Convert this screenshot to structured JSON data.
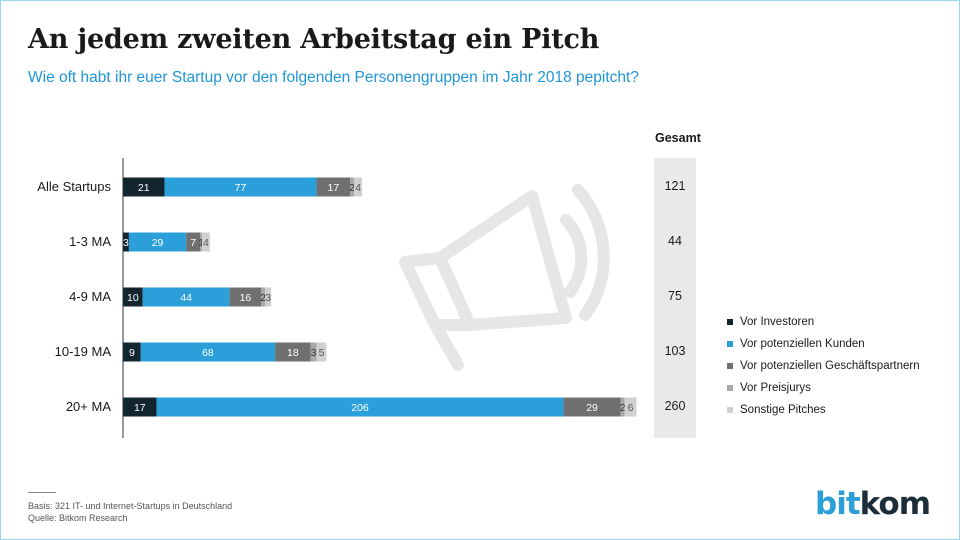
{
  "title": "An jedem zweiten Arbeitstag ein Pitch",
  "subtitle": "Wie oft habt ihr euer Startup vor den folgenden Personengruppen im Jahr 2018 pepitcht?",
  "gesamt_label": "Gesamt",
  "footer": {
    "basis": "Basis: 321 IT- und Internet-Startups in Deutschland",
    "quelle": "Quelle: Bitkom Research"
  },
  "logo": {
    "part1": "bit",
    "part2": "kom"
  },
  "colors": {
    "investoren": "#13262f",
    "kunden": "#2b9fd9",
    "geschaeftspartner": "#707070",
    "preisjurys": "#a8a8a8",
    "sonstige": "#d0d0d0",
    "title": "#1a1a1a",
    "subtitle": "#2196d6",
    "gesamt_bg": "#e9e9e9"
  },
  "chart_data": {
    "type": "bar",
    "orientation": "horizontal",
    "stacked": true,
    "categories": [
      "Alle Startups",
      "1-3 MA",
      "4-9 MA",
      "10-19 MA",
      "20+ MA"
    ],
    "series": [
      {
        "name": "Vor Investoren",
        "values": [
          21,
          3,
          10,
          9,
          17
        ],
        "labels": [
          "21",
          "3",
          "10",
          "9",
          "17"
        ]
      },
      {
        "name": "Vor potenziellen Kunden",
        "values": [
          77,
          29,
          44,
          68,
          206
        ],
        "labels": [
          "77",
          "29",
          "44",
          "68",
          "206"
        ]
      },
      {
        "name": "Vor potenziellen Geschäftspartnern",
        "values": [
          17,
          7,
          16,
          18,
          29
        ],
        "labels": [
          "17",
          "7",
          "16",
          "18",
          "29"
        ]
      },
      {
        "name": "Vor Preisjurys",
        "values": [
          2,
          1,
          2,
          3,
          2
        ],
        "labels": [
          "2",
          "1",
          "2",
          "3",
          "2"
        ]
      },
      {
        "name": "Sonstige Pitches",
        "values": [
          4,
          4,
          3,
          5,
          6
        ],
        "labels": [
          "4",
          "4",
          "3",
          "5",
          "6"
        ]
      }
    ],
    "totals": [
      "121",
      "44",
      "75",
      "103",
      "260"
    ],
    "xlim": [
      0,
      260
    ],
    "grid": false,
    "legend": "right"
  }
}
